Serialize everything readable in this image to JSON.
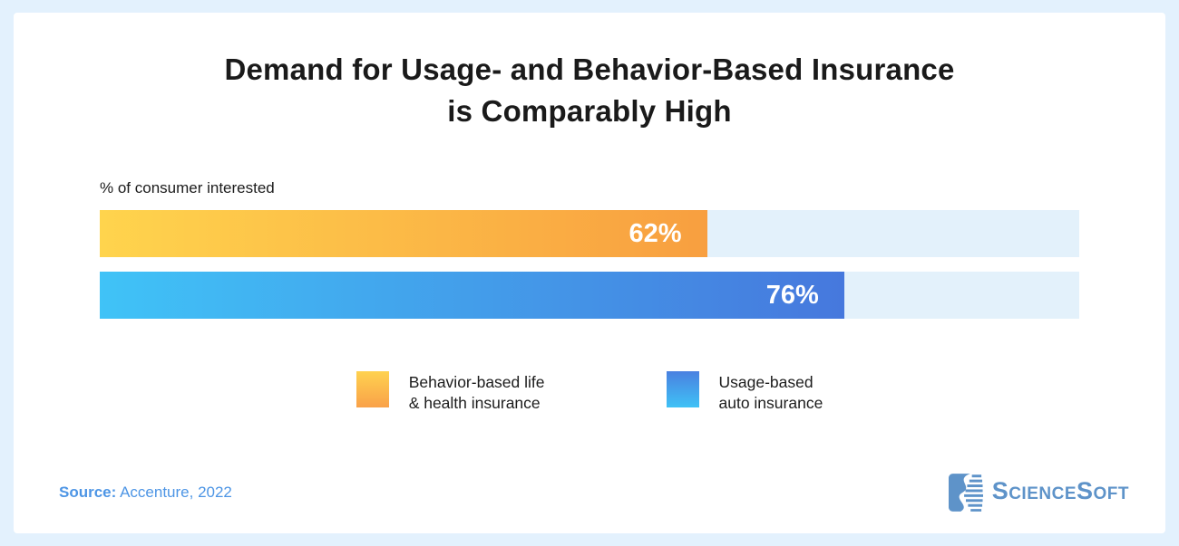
{
  "page": {
    "background_color": "#e3f1fd",
    "card_color": "#ffffff"
  },
  "title": {
    "line1": "Demand for Usage- and Behavior-Based Insurance",
    "line2": "is Comparably High"
  },
  "chart_data": {
    "type": "bar",
    "orientation": "horizontal",
    "axis_note": "% of consumer interested",
    "categories": [
      "Behavior-based life & health insurance",
      "Usage-based auto insurance"
    ],
    "values": [
      62,
      76
    ],
    "value_labels": [
      "62%",
      "76%"
    ],
    "xlim": [
      0,
      100
    ],
    "grid": false,
    "legend_position": "bottom-center",
    "colors": {
      "behavior_bar_gradient": [
        "#ffd44d",
        "#f89f40"
      ],
      "usage_bar_gradient": [
        "#40c3f7",
        "#4678dd"
      ],
      "bar_track": "#e3f1fb",
      "value_label_text": "#ffffff"
    },
    "legend": [
      {
        "label_line1": "Behavior-based life",
        "label_line2": "& health insurance"
      },
      {
        "label_line1": "Usage-based",
        "label_line2": "auto insurance"
      }
    ]
  },
  "footer": {
    "source_label": "Source:",
    "source_value": " Accenture, 2022",
    "source_color": "#4d95e5",
    "logo_text": "ScienceSoft",
    "logo_color": "#5e93c9"
  }
}
